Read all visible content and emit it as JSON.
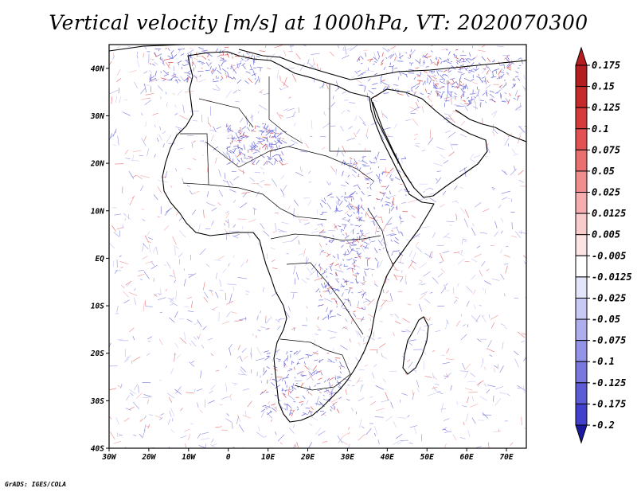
{
  "title": "Vertical velocity [m/s] at 1000hPa, VT: 2020070300",
  "credit": "GrADS: IGES/COLA",
  "map": {
    "lon_range": [
      -30,
      75
    ],
    "lat_range": [
      -40,
      45
    ],
    "x_ticks": [
      {
        "lon": -30,
        "label": "30W"
      },
      {
        "lon": -20,
        "label": "20W"
      },
      {
        "lon": -10,
        "label": "10W"
      },
      {
        "lon": 0,
        "label": "0"
      },
      {
        "lon": 10,
        "label": "10E"
      },
      {
        "lon": 20,
        "label": "20E"
      },
      {
        "lon": 30,
        "label": "30E"
      },
      {
        "lon": 40,
        "label": "40E"
      },
      {
        "lon": 50,
        "label": "50E"
      },
      {
        "lon": 60,
        "label": "60E"
      },
      {
        "lon": 70,
        "label": "70E"
      }
    ],
    "y_ticks": [
      {
        "lat": 40,
        "label": "40N"
      },
      {
        "lat": 30,
        "label": "30N"
      },
      {
        "lat": 20,
        "label": "20N"
      },
      {
        "lat": 10,
        "label": "10N"
      },
      {
        "lat": 0,
        "label": "EQ"
      },
      {
        "lat": -10,
        "label": "10S"
      },
      {
        "lat": -20,
        "label": "20S"
      },
      {
        "lat": -30,
        "label": "30S"
      },
      {
        "lat": -40,
        "label": "40S"
      }
    ]
  },
  "colorbar": {
    "levels": [
      {
        "label": "0.175",
        "color": "#b41e1e"
      },
      {
        "label": "0.15",
        "color": "#c62b2b"
      },
      {
        "label": "0.125",
        "color": "#d63b3b"
      },
      {
        "label": "0.1",
        "color": "#e25252"
      },
      {
        "label": "0.075",
        "color": "#ea7070"
      },
      {
        "label": "0.05",
        "color": "#f08e8e"
      },
      {
        "label": "0.025",
        "color": "#f5adad"
      },
      {
        "label": "0.0125",
        "color": "#f9cccc"
      },
      {
        "label": "0.005",
        "color": "#fde4e4"
      },
      {
        "label": "-0.005",
        "color": "#ffffff"
      },
      {
        "label": "-0.0125",
        "color": "#e4e4fb"
      },
      {
        "label": "-0.025",
        "color": "#c9c9f5"
      },
      {
        "label": "-0.05",
        "color": "#aeaeef"
      },
      {
        "label": "-0.075",
        "color": "#9393e7"
      },
      {
        "label": "-0.1",
        "color": "#7878df"
      },
      {
        "label": "-0.125",
        "color": "#5c5cd6"
      },
      {
        "label": "-0.175",
        "color": "#4141cc"
      },
      {
        "label": "-0.2",
        "color": "#2a2ab8"
      }
    ],
    "top_triangle_color": "#b41e1e",
    "bottom_triangle_color": "#1a1aa0"
  }
}
